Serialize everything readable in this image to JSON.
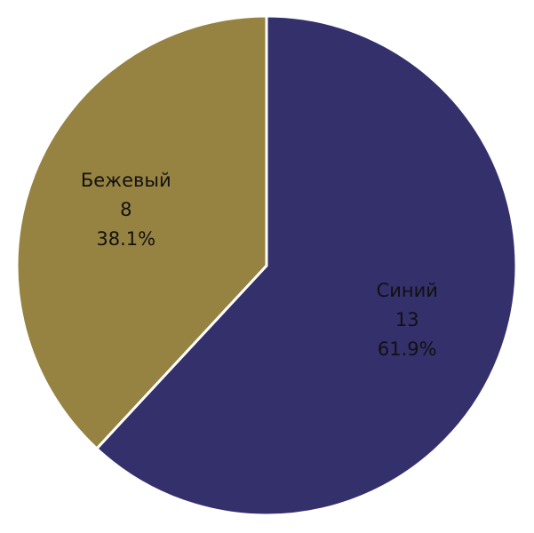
{
  "chart_data": {
    "type": "pie",
    "categories": [
      "Синий",
      "Бежевый"
    ],
    "values": [
      13,
      8
    ],
    "percent_labels": [
      "61.9%",
      "38.1%"
    ],
    "colors": [
      "#33306b",
      "#978341"
    ],
    "start": "top, clockwise"
  }
}
